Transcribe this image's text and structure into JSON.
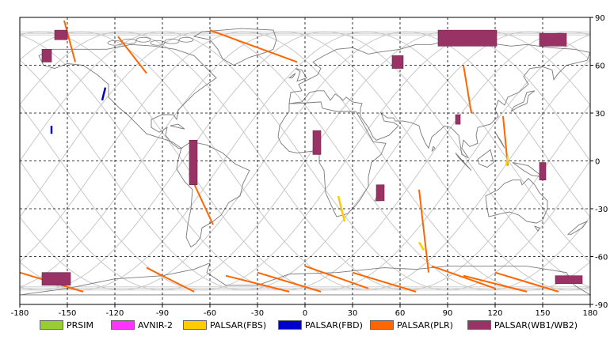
{
  "chart_data": {
    "type": "map",
    "xlim": [
      -180,
      180
    ],
    "ylim": [
      -90,
      90
    ],
    "x_ticks": [
      -180,
      -150,
      -120,
      -90,
      -60,
      -30,
      0,
      30,
      60,
      90,
      120,
      150,
      180
    ],
    "y_ticks": [
      90,
      60,
      30,
      0,
      -30,
      -60,
      -90
    ],
    "grid": "dashed",
    "legend_position": "bottom",
    "series": [
      {
        "name": "PRSIM",
        "color": "#99cc33"
      },
      {
        "name": "AVNIR-2",
        "color": "#ff33ff"
      },
      {
        "name": "PALSAR(FBS)",
        "color": "#ffcc00"
      },
      {
        "name": "PALSAR(FBD)",
        "color": "#0000cc"
      },
      {
        "name": "PALSAR(PLR)",
        "color": "#ff6600"
      },
      {
        "name": "PALSAR(WB1/WB2)",
        "color": "#993366"
      }
    ],
    "wb_swaths": [
      {
        "lon": [
          -158,
          -150
        ],
        "lat": [
          82,
          76
        ]
      },
      {
        "lon": [
          -166,
          -160
        ],
        "lat": [
          62,
          70
        ]
      },
      {
        "lon": [
          -73,
          -68
        ],
        "lat": [
          -15,
          13
        ]
      },
      {
        "lon": [
          5,
          10
        ],
        "lat": [
          4,
          19
        ]
      },
      {
        "lon": [
          45,
          50
        ],
        "lat": [
          -25,
          -15
        ]
      },
      {
        "lon": [
          84,
          121
        ],
        "lat": [
          72,
          82
        ]
      },
      {
        "lon": [
          55,
          62
        ],
        "lat": [
          58,
          66
        ]
      },
      {
        "lon": [
          95,
          98
        ],
        "lat": [
          23,
          29
        ]
      },
      {
        "lon": [
          148,
          152
        ],
        "lat": [
          -12,
          -1
        ]
      },
      {
        "lon": [
          148,
          165
        ],
        "lat": [
          72,
          80
        ]
      },
      {
        "lon": [
          -166,
          -148
        ],
        "lat": [
          -78,
          -70
        ]
      },
      {
        "lon": [
          158,
          175
        ],
        "lat": [
          -77,
          -72
        ]
      }
    ],
    "fbd_swaths": [
      {
        "lon": [
          -128,
          -126
        ],
        "lat": [
          38,
          46
        ]
      },
      {
        "lon": [
          -160,
          -160
        ],
        "lat": [
          17,
          22
        ]
      }
    ],
    "fbs_swaths": [
      {
        "lon": [
          21,
          25
        ],
        "lat": [
          -22,
          -38
        ]
      },
      {
        "lon": [
          127,
          128
        ],
        "lat": [
          -3,
          3
        ]
      },
      {
        "lon": [
          72,
          75
        ],
        "lat": [
          -51,
          -56
        ]
      }
    ],
    "plr_tracks": [
      {
        "lon": [
          -60,
          -5
        ],
        "lat": [
          82,
          62
        ]
      },
      {
        "lon": [
          -118,
          -100
        ],
        "lat": [
          78,
          55
        ]
      },
      {
        "lon": [
          -73,
          -58
        ],
        "lat": [
          -8,
          -40
        ]
      },
      {
        "lon": [
          -152,
          -145
        ],
        "lat": [
          88,
          62
        ]
      },
      {
        "lon": [
          72,
          78
        ],
        "lat": [
          -18,
          -70
        ]
      },
      {
        "lon": [
          100,
          105
        ],
        "lat": [
          60,
          30
        ]
      },
      {
        "lon": [
          125,
          128
        ],
        "lat": [
          28,
          -3
        ]
      },
      {
        "lon": [
          -100,
          -70
        ],
        "lat": [
          -67,
          -82
        ]
      },
      {
        "lon": [
          -30,
          10
        ],
        "lat": [
          -70,
          -82
        ]
      },
      {
        "lon": [
          30,
          70
        ],
        "lat": [
          -70,
          -82
        ]
      },
      {
        "lon": [
          120,
          160
        ],
        "lat": [
          -70,
          -82
        ]
      },
      {
        "lon": [
          -180,
          -140
        ],
        "lat": [
          -70,
          -82
        ]
      },
      {
        "lon": [
          -50,
          -10
        ],
        "lat": [
          -72,
          -82
        ]
      },
      {
        "lon": [
          0,
          40
        ],
        "lat": [
          -66,
          -80
        ]
      },
      {
        "lon": [
          80,
          120
        ],
        "lat": [
          -66,
          -80
        ]
      },
      {
        "lon": [
          100,
          140
        ],
        "lat": [
          -72,
          -82
        ]
      }
    ]
  }
}
